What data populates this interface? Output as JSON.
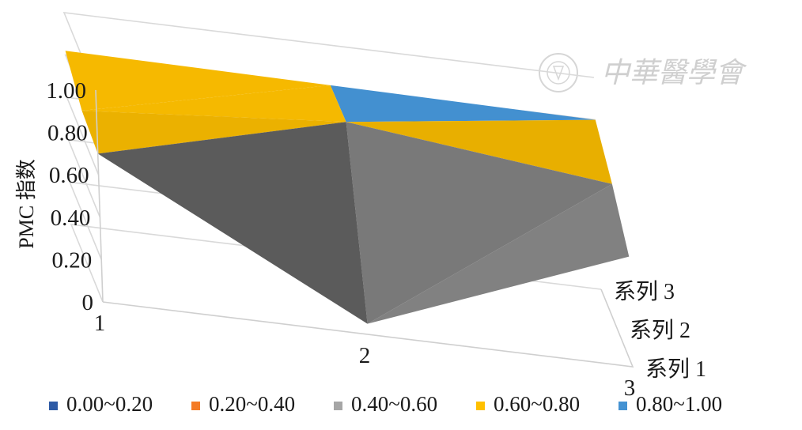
{
  "chart_data": {
    "type": "3d-surface",
    "title": "",
    "ylabel": "PMC 指数",
    "x_categories": [
      "1",
      "2",
      "3"
    ],
    "series_depth": [
      "系列 1",
      "系列 2",
      "系列 3"
    ],
    "z_ticks": [
      "0",
      "0.20",
      "0.40",
      "0.60",
      "0.80",
      "1.00"
    ],
    "zlim": [
      0,
      1
    ],
    "grid": true,
    "values": [
      [
        0.7,
        0.05,
        0.52
      ],
      [
        0.72,
        0.82,
        0.68
      ],
      [
        0.82,
        0.81,
        0.8
      ]
    ],
    "legend": {
      "position": "bottom",
      "items": [
        {
          "label": "0.00~0.20",
          "color": "#2e5aa5"
        },
        {
          "label": "0.20~0.40",
          "color": "#f47b25"
        },
        {
          "label": "0.40~0.60",
          "color": "#a6a6a6"
        },
        {
          "label": "0.60~0.80",
          "color": "#ffc000"
        },
        {
          "label": "0.80~1.00",
          "color": "#4492d2"
        }
      ]
    }
  },
  "watermark": {
    "text": "中華醫學會",
    "kind": "logo"
  }
}
